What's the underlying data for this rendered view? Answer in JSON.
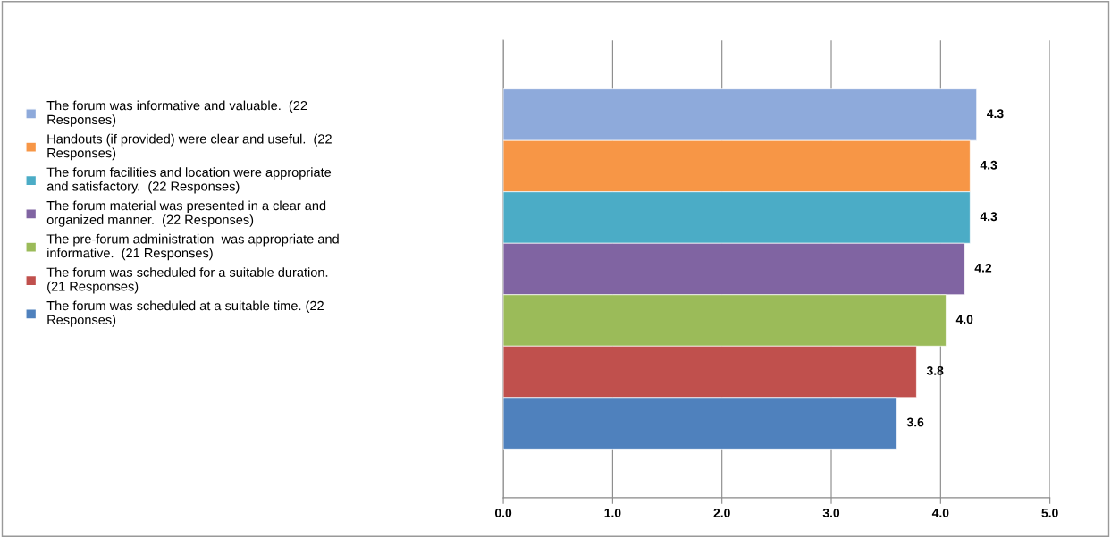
{
  "chart_data": {
    "type": "bar",
    "orientation": "horizontal",
    "categories": [
      null
    ],
    "series": [
      {
        "name": "The forum was informative and valuable.  (22 Responses)",
        "color": "#8eaadb",
        "values": [
          4.33
        ],
        "value_labels": [
          "4.3"
        ]
      },
      {
        "name": "Handouts (if provided) were clear and useful.  (22 Responses)",
        "color": "#f79646",
        "values": [
          4.27
        ],
        "value_labels": [
          "4.3"
        ]
      },
      {
        "name": "The forum facilities and location were appropriate and satisfactory.  (22 Responses)",
        "color": "#4bacc6",
        "values": [
          4.27
        ],
        "value_labels": [
          "4.3"
        ]
      },
      {
        "name": "The forum material was presented in a clear and organized manner.  (22 Responses)",
        "color": "#8064a2",
        "values": [
          4.22
        ],
        "value_labels": [
          "4.2"
        ]
      },
      {
        "name": "The pre-forum administration  was appropriate and informative.  (21 Responses)",
        "color": "#9bbb59",
        "values": [
          4.05
        ],
        "value_labels": [
          "4.0"
        ]
      },
      {
        "name": "The forum was scheduled for a suitable duration.  (21 Responses)",
        "color": "#c0504d",
        "values": [
          3.78
        ],
        "value_labels": [
          "3.8"
        ]
      },
      {
        "name": "The forum was scheduled at a suitable time. (22 Responses)",
        "color": "#4f81bd",
        "values": [
          3.6
        ],
        "value_labels": [
          "3.6"
        ]
      }
    ],
    "xlim": [
      0,
      5
    ],
    "xticks": [
      {
        "value": 0,
        "label": "0.0"
      },
      {
        "value": 1,
        "label": "1.0"
      },
      {
        "value": 2,
        "label": "2.0"
      },
      {
        "value": 3,
        "label": "3.0"
      },
      {
        "value": 4,
        "label": "4.0"
      },
      {
        "value": 5,
        "label": "5.0"
      }
    ],
    "grid": "x",
    "legend": "left"
  }
}
